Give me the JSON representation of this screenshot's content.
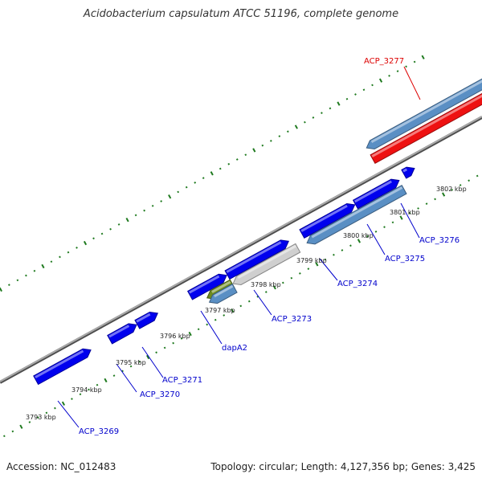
{
  "title": "Acidobacterium capsulatum ATCC 51196, complete genome",
  "footer": {
    "accession": "Accession: NC_012483",
    "summary": "Topology: circular; Length: 4,127,356 bp; Genes: 3,425"
  },
  "colors": {
    "forward_gene": "#0000ee",
    "reverse_gene": "#5a8fc4",
    "rrna_gene": "#ee1111",
    "pseudo_gene": "#cfcfcf",
    "dapA2_gene": "#6e8b1e",
    "backbone": "#8a8a8a",
    "tick": "#1f7a1f",
    "forward_label": "#0000cc",
    "rrna_label": "#dd0000"
  },
  "kbp_labels": [
    "3793 kbp",
    "3794 kbp",
    "3795 kbp",
    "3796 kbp",
    "3797 kbp",
    "3798 kbp",
    "3799 kbp",
    "3800 kbp",
    "3801 kbp",
    "3802 kbp"
  ],
  "gene_labels": [
    {
      "name": "ACP_3269",
      "color": "forward"
    },
    {
      "name": "ACP_3270",
      "color": "forward"
    },
    {
      "name": "ACP_3271",
      "color": "forward"
    },
    {
      "name": "dapA2",
      "color": "forward"
    },
    {
      "name": "ACP_3273",
      "color": "forward"
    },
    {
      "name": "ACP_3274",
      "color": "forward"
    },
    {
      "name": "ACP_3275",
      "color": "forward"
    },
    {
      "name": "ACP_3276",
      "color": "forward"
    },
    {
      "name": "ACP_3277",
      "color": "rrna"
    }
  ]
}
